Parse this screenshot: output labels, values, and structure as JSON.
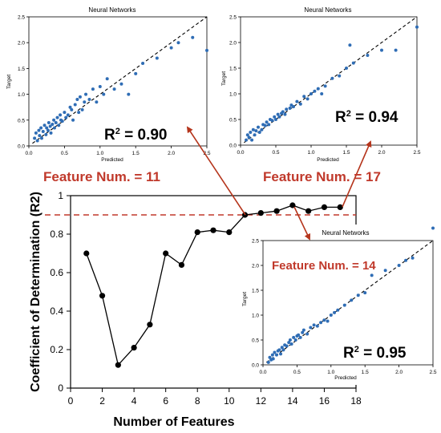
{
  "main": {
    "threshold": 0.9,
    "ylabel": "Coefficient of Determination (R2)",
    "xlabel": "Number of Features",
    "xticks": [
      0,
      2,
      4,
      6,
      8,
      10,
      12,
      14,
      16,
      18
    ],
    "yticks": [
      0,
      0.2,
      0.4,
      0.6,
      0.8,
      1
    ],
    "xlim": [
      0,
      18
    ],
    "ylim": [
      0,
      1
    ]
  },
  "callouts": [
    {
      "label": "Feature Num. = 11",
      "features": 11
    },
    {
      "label": "Feature Num. = 17",
      "features": 17
    },
    {
      "label": "Feature Num. = 14",
      "features": 14
    }
  ],
  "chart_data": [
    {
      "type": "line",
      "xlabel": "Number of Features",
      "ylabel": "Coefficient of Determination (R2)",
      "xlim": [
        0,
        18
      ],
      "ylim": [
        0,
        1
      ],
      "x": [
        1,
        2,
        3,
        4,
        5,
        6,
        7,
        8,
        9,
        10,
        11,
        12,
        13,
        14,
        15,
        16,
        17
      ],
      "y": [
        0.7,
        0.48,
        0.12,
        0.21,
        0.33,
        0.7,
        0.64,
        0.81,
        0.82,
        0.81,
        0.9,
        0.91,
        0.92,
        0.95,
        0.92,
        0.94,
        0.94
      ],
      "reference_line": 0.9
    },
    {
      "type": "scatter",
      "title": "Neural Networks",
      "xlabel": "Predicted",
      "ylabel": "Target",
      "r2_text": "0.90",
      "xlim": [
        0,
        2.5
      ],
      "ylim": [
        0,
        2.5
      ],
      "xticks": [
        "0.0",
        "0.5",
        "1.0",
        "1.5",
        "2.0",
        "2.5"
      ],
      "yticks": [
        "0.0",
        "0.5",
        "1.0",
        "1.5",
        "2.0",
        "2.5"
      ],
      "x": [
        0.08,
        0.1,
        0.12,
        0.14,
        0.15,
        0.17,
        0.18,
        0.2,
        0.22,
        0.24,
        0.25,
        0.27,
        0.28,
        0.3,
        0.31,
        0.33,
        0.35,
        0.36,
        0.38,
        0.4,
        0.42,
        0.44,
        0.45,
        0.47,
        0.5,
        0.52,
        0.55,
        0.58,
        0.6,
        0.62,
        0.65,
        0.68,
        0.7,
        0.72,
        0.75,
        0.78,
        0.8,
        0.85,
        0.9,
        0.95,
        1.0,
        1.05,
        1.1,
        1.2,
        1.3,
        1.4,
        1.5,
        1.6,
        1.8,
        2.0,
        2.1,
        2.3,
        2.5
      ],
      "y": [
        0.15,
        0.25,
        0.1,
        0.3,
        0.2,
        0.35,
        0.15,
        0.28,
        0.4,
        0.22,
        0.35,
        0.3,
        0.45,
        0.38,
        0.25,
        0.42,
        0.5,
        0.35,
        0.45,
        0.55,
        0.4,
        0.6,
        0.5,
        0.48,
        0.65,
        0.55,
        0.6,
        0.75,
        0.7,
        0.5,
        0.8,
        0.9,
        0.65,
        0.95,
        0.7,
        0.85,
        1.0,
        0.9,
        1.1,
        0.85,
        1.15,
        1.0,
        1.3,
        1.1,
        1.2,
        1.0,
        1.4,
        1.6,
        1.7,
        1.9,
        2.0,
        2.1,
        1.85
      ]
    },
    {
      "type": "scatter",
      "title": "Neural Networks",
      "xlabel": "Predicted",
      "ylabel": "Target",
      "r2_text": "0.94",
      "xlim": [
        0,
        2.5
      ],
      "ylim": [
        0,
        2.5
      ],
      "xticks": [
        "0.0",
        "0.5",
        "1.0",
        "1.5",
        "2.0",
        "2.5"
      ],
      "yticks": [
        "0.0",
        "0.5",
        "1.0",
        "1.5",
        "2.0",
        "2.5"
      ],
      "x": [
        0.08,
        0.1,
        0.12,
        0.14,
        0.16,
        0.18,
        0.2,
        0.22,
        0.25,
        0.27,
        0.3,
        0.32,
        0.35,
        0.37,
        0.4,
        0.42,
        0.45,
        0.48,
        0.5,
        0.53,
        0.55,
        0.58,
        0.6,
        0.63,
        0.65,
        0.7,
        0.72,
        0.75,
        0.8,
        0.85,
        0.9,
        0.95,
        1.0,
        1.05,
        1.1,
        1.15,
        1.2,
        1.3,
        1.4,
        1.5,
        1.55,
        1.6,
        1.8,
        2.0,
        2.2,
        2.5
      ],
      "y": [
        0.1,
        0.2,
        0.15,
        0.25,
        0.1,
        0.3,
        0.2,
        0.28,
        0.35,
        0.25,
        0.3,
        0.4,
        0.38,
        0.45,
        0.4,
        0.5,
        0.48,
        0.55,
        0.5,
        0.6,
        0.55,
        0.62,
        0.65,
        0.6,
        0.7,
        0.72,
        0.78,
        0.75,
        0.85,
        0.8,
        0.95,
        0.9,
        1.0,
        1.05,
        1.1,
        1.0,
        1.15,
        1.3,
        1.35,
        1.5,
        1.95,
        1.6,
        1.75,
        1.85,
        1.85,
        2.3
      ]
    },
    {
      "type": "scatter",
      "title": "Neural Networks",
      "xlabel": "Predicted",
      "ylabel": "Target",
      "r2_text": "0.95",
      "xlim": [
        0,
        2.5
      ],
      "ylim": [
        0,
        2.5
      ],
      "xticks": [
        "0.0",
        "0.5",
        "1.0",
        "1.5",
        "2.0",
        "2.5"
      ],
      "yticks": [
        "0.0",
        "0.5",
        "1.0",
        "1.5",
        "2.0",
        "2.5"
      ],
      "x": [
        0.08,
        0.1,
        0.12,
        0.14,
        0.15,
        0.17,
        0.2,
        0.22,
        0.24,
        0.26,
        0.28,
        0.3,
        0.32,
        0.35,
        0.38,
        0.4,
        0.42,
        0.45,
        0.48,
        0.5,
        0.52,
        0.55,
        0.58,
        0.6,
        0.65,
        0.7,
        0.75,
        0.8,
        0.85,
        0.9,
        0.95,
        1.0,
        1.05,
        1.1,
        1.2,
        1.3,
        1.4,
        1.5,
        1.6,
        1.8,
        2.0,
        2.1,
        2.2,
        2.5
      ],
      "y": [
        0.05,
        0.15,
        0.1,
        0.2,
        0.12,
        0.25,
        0.2,
        0.28,
        0.3,
        0.22,
        0.35,
        0.3,
        0.4,
        0.38,
        0.45,
        0.5,
        0.42,
        0.55,
        0.5,
        0.58,
        0.6,
        0.55,
        0.65,
        0.7,
        0.62,
        0.75,
        0.8,
        0.78,
        0.85,
        0.9,
        0.88,
        1.0,
        1.05,
        1.1,
        1.2,
        1.3,
        1.4,
        1.45,
        1.8,
        1.9,
        2.0,
        2.1,
        2.15,
        2.75
      ]
    }
  ]
}
